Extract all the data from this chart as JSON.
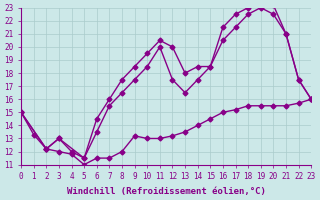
{
  "xlabel": "Windchill (Refroidissement éolien,°C)",
  "xlim": [
    0,
    23
  ],
  "ylim": [
    11,
    23
  ],
  "xticks": [
    0,
    1,
    2,
    3,
    4,
    5,
    6,
    7,
    8,
    9,
    10,
    11,
    12,
    13,
    14,
    15,
    16,
    17,
    18,
    19,
    20,
    21,
    22,
    23
  ],
  "yticks": [
    11,
    12,
    13,
    14,
    15,
    16,
    17,
    18,
    19,
    20,
    21,
    22,
    23
  ],
  "background_color": "#cce8e8",
  "grid_color": "#aacccc",
  "line_color": "#880088",
  "line1_x": [
    0,
    1,
    2,
    3,
    4,
    5,
    6,
    7,
    8,
    9,
    10,
    11,
    12,
    13,
    14,
    15,
    16,
    17,
    18,
    19,
    20,
    21,
    22,
    23
  ],
  "line1_y": [
    15.0,
    13.3,
    12.2,
    12.0,
    11.8,
    11.0,
    11.5,
    11.5,
    12.0,
    13.2,
    13.0,
    13.0,
    13.2,
    13.5,
    14.0,
    14.5,
    15.0,
    15.2,
    15.5,
    15.5,
    15.5,
    15.5,
    15.7,
    16.0
  ],
  "line2_x": [
    0,
    2,
    3,
    4,
    5,
    6,
    7,
    8,
    9,
    10,
    11,
    12,
    13,
    14,
    15,
    16,
    17,
    18,
    19,
    20,
    21,
    22,
    23
  ],
  "line2_y": [
    15.0,
    12.2,
    13.0,
    12.0,
    11.5,
    13.5,
    15.5,
    16.5,
    17.5,
    18.5,
    20.0,
    17.5,
    16.5,
    17.5,
    18.5,
    20.5,
    21.5,
    22.5,
    23.0,
    22.5,
    21.0,
    17.5,
    16.0
  ],
  "line3_x": [
    0,
    2,
    3,
    5,
    6,
    7,
    8,
    9,
    10,
    11,
    12,
    13,
    14,
    15,
    16,
    17,
    18,
    19,
    20,
    21,
    22,
    23
  ],
  "line3_y": [
    15.0,
    12.2,
    13.0,
    11.5,
    14.5,
    16.0,
    17.5,
    18.5,
    19.5,
    20.5,
    20.0,
    18.0,
    18.5,
    18.5,
    21.5,
    22.5,
    23.0,
    23.2,
    23.2,
    21.0,
    17.5,
    16.0
  ],
  "marker": "D",
  "marker_size": 2.5,
  "line_width": 1.0,
  "tick_fontsize": 5.5,
  "xlabel_fontsize": 6.5
}
